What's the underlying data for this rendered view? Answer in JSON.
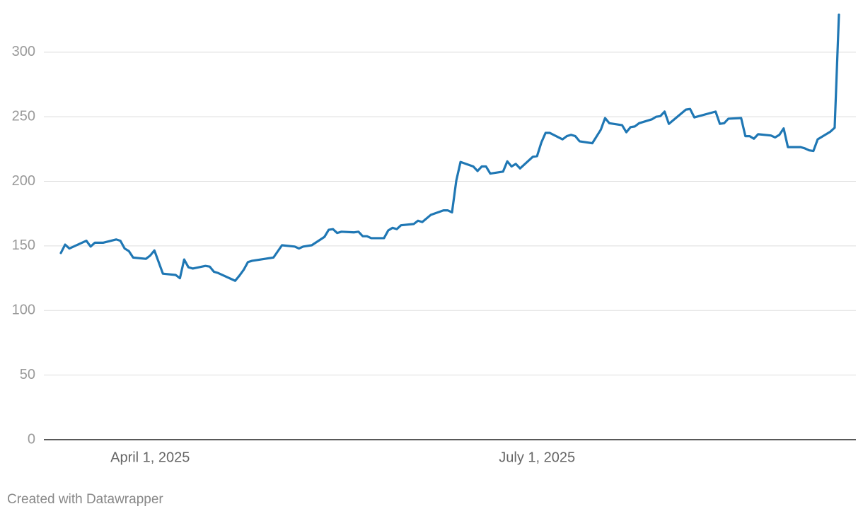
{
  "chart_data": {
    "type": "line",
    "color": "#1f77b4",
    "grid": true,
    "source": "Created with Datawrapper",
    "xlim": [
      "2025-03-07",
      "2025-09-14"
    ],
    "xticks": [
      {
        "value": "2025-04-01",
        "label": "April 1, 2025"
      },
      {
        "value": "2025-07-01",
        "label": "July 1, 2025"
      }
    ],
    "ylim": [
      0,
      330
    ],
    "yticks": [
      0,
      50,
      100,
      150,
      200,
      250,
      300
    ],
    "x": [
      "2025-03-11",
      "2025-03-12",
      "2025-03-13",
      "2025-03-17",
      "2025-03-18",
      "2025-03-19",
      "2025-03-20",
      "2025-03-21",
      "2025-03-24",
      "2025-03-25",
      "2025-03-26",
      "2025-03-27",
      "2025-03-28",
      "2025-03-31",
      "2025-04-01",
      "2025-04-02",
      "2025-04-04",
      "2025-04-07",
      "2025-04-08",
      "2025-04-09",
      "2025-04-10",
      "2025-04-11",
      "2025-04-14",
      "2025-04-15",
      "2025-04-16",
      "2025-04-17",
      "2025-04-21",
      "2025-04-22",
      "2025-04-23",
      "2025-04-24",
      "2025-04-25",
      "2025-04-28",
      "2025-04-30",
      "2025-05-02",
      "2025-05-05",
      "2025-05-06",
      "2025-05-07",
      "2025-05-09",
      "2025-05-12",
      "2025-05-13",
      "2025-05-14",
      "2025-05-15",
      "2025-05-16",
      "2025-05-19",
      "2025-05-20",
      "2025-05-21",
      "2025-05-22",
      "2025-05-23",
      "2025-05-26",
      "2025-05-27",
      "2025-05-28",
      "2025-05-29",
      "2025-05-30",
      "2025-06-02",
      "2025-06-03",
      "2025-06-04",
      "2025-06-06",
      "2025-06-09",
      "2025-06-10",
      "2025-06-11",
      "2025-06-12",
      "2025-06-13",
      "2025-06-16",
      "2025-06-17",
      "2025-06-18",
      "2025-06-19",
      "2025-06-20",
      "2025-06-23",
      "2025-06-24",
      "2025-06-25",
      "2025-06-26",
      "2025-06-27",
      "2025-06-30",
      "2025-07-01",
      "2025-07-02",
      "2025-07-03",
      "2025-07-04",
      "2025-07-07",
      "2025-07-08",
      "2025-07-09",
      "2025-07-10",
      "2025-07-11",
      "2025-07-14",
      "2025-07-16",
      "2025-07-17",
      "2025-07-18",
      "2025-07-21",
      "2025-07-22",
      "2025-07-23",
      "2025-07-24",
      "2025-07-25",
      "2025-07-28",
      "2025-07-29",
      "2025-07-30",
      "2025-07-31",
      "2025-08-01",
      "2025-08-05",
      "2025-08-06",
      "2025-08-07",
      "2025-08-12",
      "2025-08-13",
      "2025-08-14",
      "2025-08-15",
      "2025-08-18",
      "2025-08-19",
      "2025-08-20",
      "2025-08-21",
      "2025-08-22",
      "2025-08-25",
      "2025-08-26",
      "2025-08-27",
      "2025-08-28",
      "2025-08-29",
      "2025-09-01",
      "2025-09-02",
      "2025-09-03",
      "2025-09-04",
      "2025-09-05",
      "2025-09-08",
      "2025-09-09",
      "2025-09-10"
    ],
    "values": [
      144.5,
      151,
      148,
      154,
      149.5,
      152.5,
      152.5,
      152.5,
      155,
      154,
      148,
      146,
      141,
      140,
      142.5,
      146.5,
      128.5,
      127.5,
      125,
      139.5,
      133.5,
      132.5,
      134.5,
      134,
      130,
      129,
      123,
      127,
      131.5,
      137.5,
      138.5,
      140,
      141,
      150.5,
      149.5,
      148,
      149.5,
      150.5,
      157,
      162.5,
      163,
      160,
      161,
      160.5,
      161,
      157.5,
      157.5,
      156,
      156,
      162,
      164,
      163,
      166,
      167,
      169.5,
      168.5,
      174,
      177.5,
      177.5,
      176,
      200.5,
      215,
      211.5,
      208,
      211.5,
      211.5,
      206,
      207.5,
      215.5,
      211.5,
      213.5,
      210,
      219,
      219.5,
      230,
      237.5,
      237.5,
      232.5,
      235,
      236,
      235,
      231,
      229.5,
      240,
      249,
      245,
      243.5,
      238,
      242,
      242.5,
      245,
      248,
      250,
      250.5,
      254,
      244.5,
      255.5,
      256,
      249.5,
      254,
      244.5,
      245,
      248.5,
      249,
      235,
      235,
      233,
      236.5,
      235.5,
      234,
      236,
      241,
      226.5,
      226.5,
      225.5,
      224,
      223.5,
      232.5,
      238.5,
      241.5,
      329
    ]
  }
}
